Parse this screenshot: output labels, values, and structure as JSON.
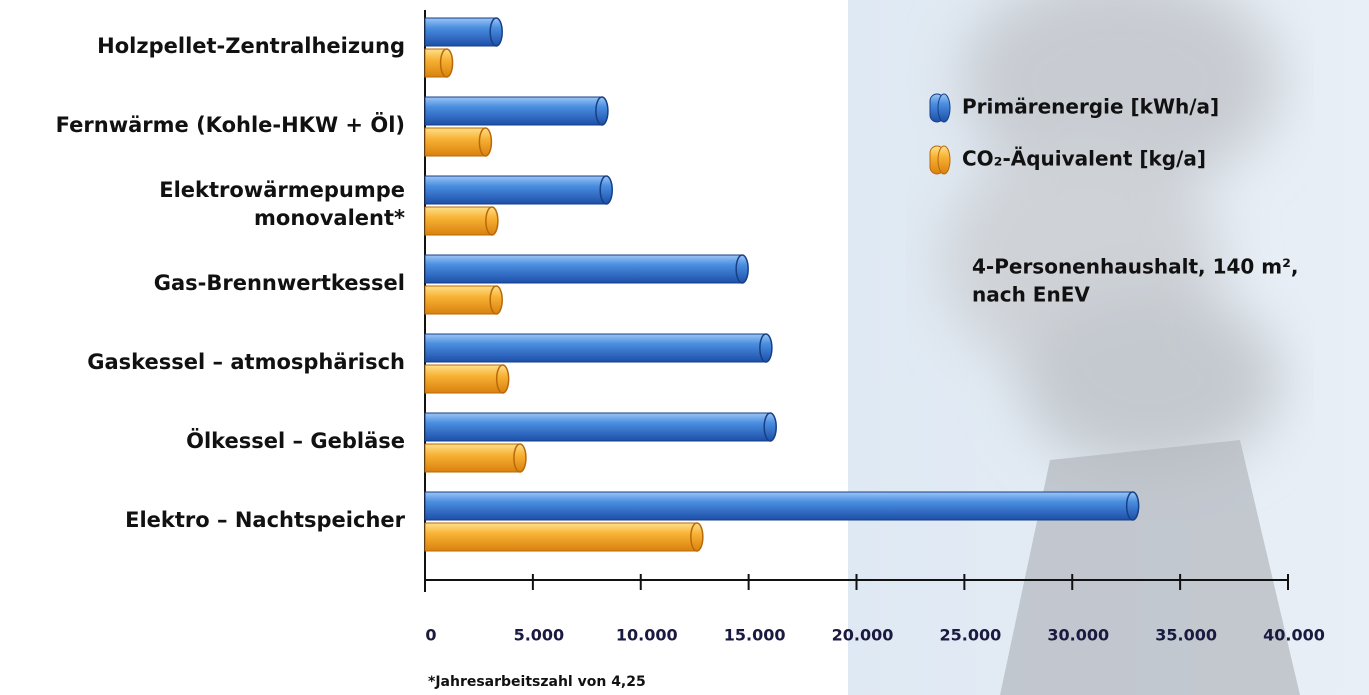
{
  "chart_data": {
    "type": "hbar",
    "categories": [
      "Holzpellet-Zentralheizung",
      "Fernwärme (Kohle-HKW + Öl)",
      [
        "Elektrowärmepumpe",
        "monovalent*"
      ],
      "Gas-Brennwertkessel",
      "Gaskessel – atmosphärisch",
      "Ölkessel – Gebläse",
      "Elektro – Nachtspeicher"
    ],
    "series": [
      {
        "name": "Primärenergie [kWh/a]",
        "color": "#2f6fc9",
        "values": [
          3300,
          8200,
          8400,
          14700,
          15800,
          16000,
          32800
        ]
      },
      {
        "name": "CO₂-Äquivalent [kg/a]",
        "color": "#f5a623",
        "values": [
          1000,
          2800,
          3100,
          3300,
          3600,
          4400,
          12600
        ]
      }
    ],
    "xlim": [
      0,
      40000
    ],
    "xticks": [
      0,
      {
        "value": 5000,
        "label": "5.000"
      },
      {
        "value": 10000,
        "label": "10.000"
      },
      {
        "value": 15000,
        "label": "15.000"
      },
      {
        "value": 20000,
        "label": "20.000"
      },
      {
        "value": 25000,
        "label": "25.000"
      },
      {
        "value": 30000,
        "label": "30.000"
      },
      {
        "value": 35000,
        "label": "35.000"
      },
      {
        "value": 40000,
        "label": "40.000"
      }
    ],
    "annotation": [
      "4-Personenhaushalt, 140 m²,",
      "nach EnEV"
    ],
    "footnote": "*Jahresarbeitszahl von 4,25"
  }
}
